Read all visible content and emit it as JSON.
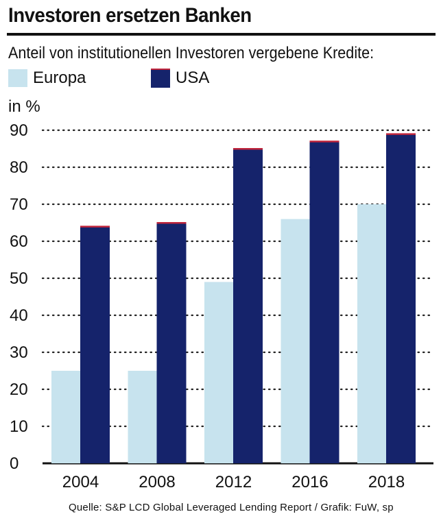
{
  "header": {
    "title": "Investoren ersetzen Banken",
    "subtitle": "Anteil von institutionellen Investoren  vergebene Kredite:"
  },
  "legend": {
    "europa": "Europa",
    "usa": "USA"
  },
  "unit": "in %",
  "source": "Quelle: S&P LCD Global Leveraged Lending Report / Grafik: FuW, sp",
  "colors": {
    "europa": "#c7e3ee",
    "usa": "#15236b",
    "usa_top": "#c0253c",
    "grid": "#222222"
  },
  "chart_data": {
    "type": "bar",
    "categories": [
      "2004",
      "2008",
      "2012",
      "2016",
      "2018"
    ],
    "series": [
      {
        "name": "Europa",
        "values": [
          25,
          25,
          49,
          66,
          70
        ]
      },
      {
        "name": "USA",
        "values": [
          64,
          65,
          85,
          87,
          89
        ]
      }
    ],
    "title": "Investoren ersetzen Banken",
    "subtitle": "Anteil von institutionellen Investoren  vergebene Kredite:",
    "ylabel": "in %",
    "ylim": [
      0,
      90
    ],
    "yticks": [
      0,
      10,
      20,
      30,
      40,
      50,
      60,
      70,
      80,
      90
    ],
    "grid": "dotted-horizontal",
    "legend_position": "top-left"
  }
}
